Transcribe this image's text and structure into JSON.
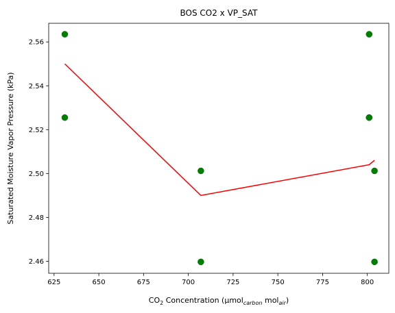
{
  "chart_data": {
    "type": "scatter",
    "title": "BOS CO2 x VP_SAT",
    "xlabel": {
      "prefix": "CO",
      "sub1": "2",
      "mid": " Concentration (μmol",
      "sub2": "carbon",
      "mid2": " mol",
      "sub3": "air",
      "suffix": ")"
    },
    "ylabel": "Saturated Moisture Vapor Pressure (kPa)",
    "xlim": [
      622,
      812
    ],
    "ylim": [
      2.4545,
      2.5685
    ],
    "xticks": [
      625,
      650,
      675,
      700,
      725,
      750,
      775,
      800
    ],
    "yticks": [
      2.46,
      2.48,
      2.5,
      2.52,
      2.54,
      2.56
    ],
    "ytick_labels": [
      "2.46",
      "2.48",
      "2.50",
      "2.52",
      "2.54",
      "2.56"
    ],
    "grid": false,
    "points_color": "#008000",
    "line_color": "#ff0000",
    "series": [
      {
        "kind": "scatter",
        "x": [
          631,
          631,
          707,
          707,
          801,
          801,
          801,
          804,
          804
        ],
        "y": [
          2.5635,
          2.5255,
          2.5012,
          2.4597,
          2.5635,
          2.5255,
          2.5255,
          2.5012,
          2.4597
        ]
      },
      {
        "kind": "line",
        "x": [
          631,
          707,
          801,
          804
        ],
        "y": [
          2.55,
          2.49,
          2.504,
          2.506
        ]
      }
    ]
  }
}
